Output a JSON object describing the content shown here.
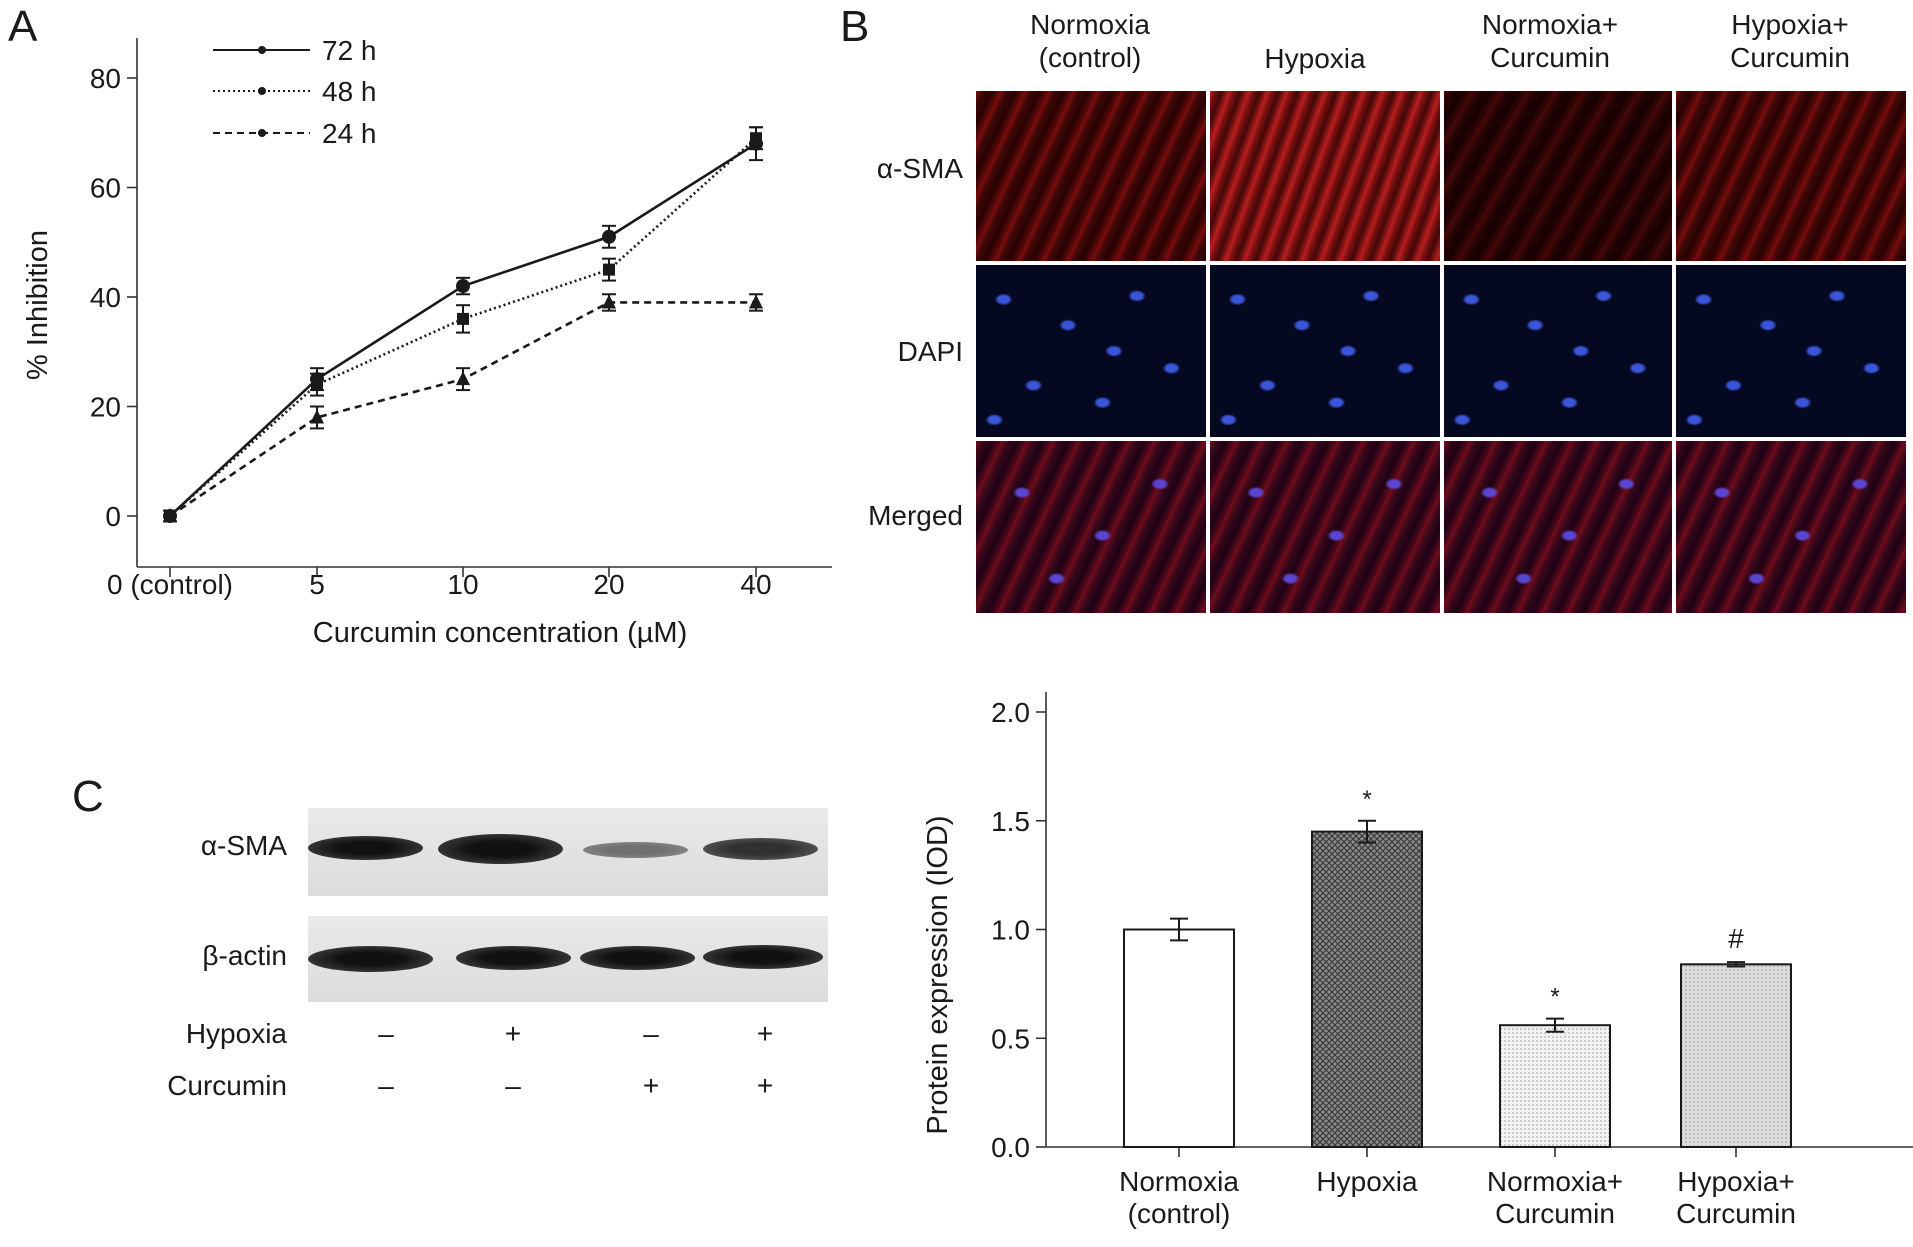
{
  "panels": {
    "a": "A",
    "b": "B",
    "c": "C"
  },
  "panel_a": {
    "chart_data": {
      "type": "line",
      "title": "",
      "xlabel": "Curcumin concentration (µM)",
      "ylabel": "% Inhibition",
      "categories": [
        "0 (control)",
        "5",
        "10",
        "20",
        "40"
      ],
      "ylim": [
        0,
        80
      ],
      "yticks": [
        "0",
        "20",
        "40",
        "60",
        "80"
      ],
      "legend_position": "top-left",
      "series": [
        {
          "name": "72 h",
          "values": [
            0,
            25,
            42,
            51,
            68
          ],
          "errors": [
            1,
            2,
            1.5,
            2,
            3
          ],
          "style": "solid",
          "marker": "circle"
        },
        {
          "name": "48 h",
          "values": [
            0,
            24,
            36,
            45,
            69
          ],
          "errors": [
            1,
            2,
            2.5,
            2,
            2
          ],
          "style": "dotted",
          "marker": "square"
        },
        {
          "name": "24 h",
          "values": [
            0,
            18,
            25,
            39,
            39
          ],
          "errors": [
            1,
            2,
            2,
            1.5,
            1.5
          ],
          "style": "dashed",
          "marker": "triangle"
        }
      ]
    }
  },
  "panel_b": {
    "columns": [
      "Normoxia\n(control)",
      "Hypoxia",
      "Normoxia+\nCurcumin",
      "Hypoxia+\nCurcumin"
    ],
    "rows": [
      "α-SMA",
      "DAPI",
      "Merged"
    ]
  },
  "panel_c": {
    "blot_labels": [
      "α-SMA",
      "β-actin"
    ],
    "condition_labels": [
      "Hypoxia",
      "Curcumin"
    ],
    "hypoxia_signs": [
      "–",
      "+",
      "–",
      "+"
    ],
    "curcumin_signs": [
      "–",
      "–",
      "+",
      "+"
    ],
    "chart_data": {
      "type": "bar",
      "title": "",
      "xlabel": "",
      "ylabel": "Protein expression (IOD)",
      "categories": [
        "Normoxia\n(control)",
        "Hypoxia",
        "Normoxia+\nCurcumin",
        "Hypoxia+\nCurcumin"
      ],
      "values": [
        1.0,
        1.45,
        0.56,
        0.84
      ],
      "errors": [
        0.05,
        0.05,
        0.03,
        0.01
      ],
      "annotations": [
        "",
        "*",
        "*",
        "#"
      ],
      "ylim": [
        0,
        2.0
      ],
      "yticks": [
        "0.0",
        "0.5",
        "1.0",
        "1.5",
        "2.0"
      ]
    }
  }
}
